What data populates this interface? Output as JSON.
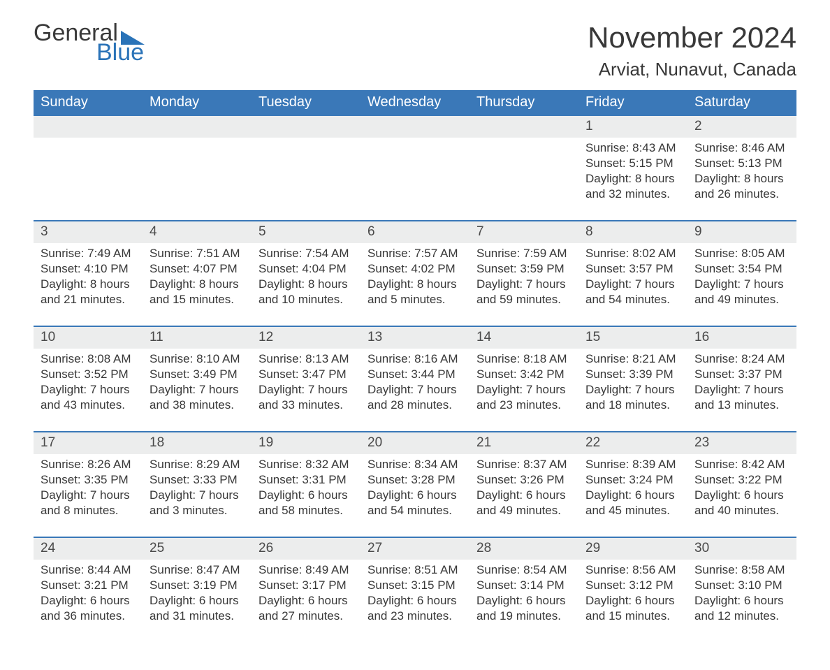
{
  "logo": {
    "text_general": "General",
    "text_blue": "Blue"
  },
  "title": "November 2024",
  "location": "Arviat, Nunavut, Canada",
  "colors": {
    "header_bg": "#3a78b8",
    "header_text": "#ffffff",
    "daynum_bg": "#eceded",
    "text": "#383838",
    "week_border": "#3a78b8",
    "page_bg": "#ffffff",
    "logo_blue": "#2a73b8"
  },
  "typography": {
    "title_fontsize": 42,
    "location_fontsize": 26,
    "header_fontsize": 20,
    "daynum_fontsize": 19,
    "body_fontsize": 17,
    "font_family": "Arial"
  },
  "day_labels": [
    "Sunday",
    "Monday",
    "Tuesday",
    "Wednesday",
    "Thursday",
    "Friday",
    "Saturday"
  ],
  "weeks": [
    [
      null,
      null,
      null,
      null,
      null,
      {
        "n": "1",
        "sunrise": "8:43 AM",
        "sunset": "5:15 PM",
        "daylight": "8 hours and 32 minutes."
      },
      {
        "n": "2",
        "sunrise": "8:46 AM",
        "sunset": "5:13 PM",
        "daylight": "8 hours and 26 minutes."
      }
    ],
    [
      {
        "n": "3",
        "sunrise": "7:49 AM",
        "sunset": "4:10 PM",
        "daylight": "8 hours and 21 minutes."
      },
      {
        "n": "4",
        "sunrise": "7:51 AM",
        "sunset": "4:07 PM",
        "daylight": "8 hours and 15 minutes."
      },
      {
        "n": "5",
        "sunrise": "7:54 AM",
        "sunset": "4:04 PM",
        "daylight": "8 hours and 10 minutes."
      },
      {
        "n": "6",
        "sunrise": "7:57 AM",
        "sunset": "4:02 PM",
        "daylight": "8 hours and 5 minutes."
      },
      {
        "n": "7",
        "sunrise": "7:59 AM",
        "sunset": "3:59 PM",
        "daylight": "7 hours and 59 minutes."
      },
      {
        "n": "8",
        "sunrise": "8:02 AM",
        "sunset": "3:57 PM",
        "daylight": "7 hours and 54 minutes."
      },
      {
        "n": "9",
        "sunrise": "8:05 AM",
        "sunset": "3:54 PM",
        "daylight": "7 hours and 49 minutes."
      }
    ],
    [
      {
        "n": "10",
        "sunrise": "8:08 AM",
        "sunset": "3:52 PM",
        "daylight": "7 hours and 43 minutes."
      },
      {
        "n": "11",
        "sunrise": "8:10 AM",
        "sunset": "3:49 PM",
        "daylight": "7 hours and 38 minutes."
      },
      {
        "n": "12",
        "sunrise": "8:13 AM",
        "sunset": "3:47 PM",
        "daylight": "7 hours and 33 minutes."
      },
      {
        "n": "13",
        "sunrise": "8:16 AM",
        "sunset": "3:44 PM",
        "daylight": "7 hours and 28 minutes."
      },
      {
        "n": "14",
        "sunrise": "8:18 AM",
        "sunset": "3:42 PM",
        "daylight": "7 hours and 23 minutes."
      },
      {
        "n": "15",
        "sunrise": "8:21 AM",
        "sunset": "3:39 PM",
        "daylight": "7 hours and 18 minutes."
      },
      {
        "n": "16",
        "sunrise": "8:24 AM",
        "sunset": "3:37 PM",
        "daylight": "7 hours and 13 minutes."
      }
    ],
    [
      {
        "n": "17",
        "sunrise": "8:26 AM",
        "sunset": "3:35 PM",
        "daylight": "7 hours and 8 minutes."
      },
      {
        "n": "18",
        "sunrise": "8:29 AM",
        "sunset": "3:33 PM",
        "daylight": "7 hours and 3 minutes."
      },
      {
        "n": "19",
        "sunrise": "8:32 AM",
        "sunset": "3:31 PM",
        "daylight": "6 hours and 58 minutes."
      },
      {
        "n": "20",
        "sunrise": "8:34 AM",
        "sunset": "3:28 PM",
        "daylight": "6 hours and 54 minutes."
      },
      {
        "n": "21",
        "sunrise": "8:37 AM",
        "sunset": "3:26 PM",
        "daylight": "6 hours and 49 minutes."
      },
      {
        "n": "22",
        "sunrise": "8:39 AM",
        "sunset": "3:24 PM",
        "daylight": "6 hours and 45 minutes."
      },
      {
        "n": "23",
        "sunrise": "8:42 AM",
        "sunset": "3:22 PM",
        "daylight": "6 hours and 40 minutes."
      }
    ],
    [
      {
        "n": "24",
        "sunrise": "8:44 AM",
        "sunset": "3:21 PM",
        "daylight": "6 hours and 36 minutes."
      },
      {
        "n": "25",
        "sunrise": "8:47 AM",
        "sunset": "3:19 PM",
        "daylight": "6 hours and 31 minutes."
      },
      {
        "n": "26",
        "sunrise": "8:49 AM",
        "sunset": "3:17 PM",
        "daylight": "6 hours and 27 minutes."
      },
      {
        "n": "27",
        "sunrise": "8:51 AM",
        "sunset": "3:15 PM",
        "daylight": "6 hours and 23 minutes."
      },
      {
        "n": "28",
        "sunrise": "8:54 AM",
        "sunset": "3:14 PM",
        "daylight": "6 hours and 19 minutes."
      },
      {
        "n": "29",
        "sunrise": "8:56 AM",
        "sunset": "3:12 PM",
        "daylight": "6 hours and 15 minutes."
      },
      {
        "n": "30",
        "sunrise": "8:58 AM",
        "sunset": "3:10 PM",
        "daylight": "6 hours and 12 minutes."
      }
    ]
  ],
  "labels": {
    "sunrise": "Sunrise:",
    "sunset": "Sunset:",
    "daylight": "Daylight:"
  }
}
